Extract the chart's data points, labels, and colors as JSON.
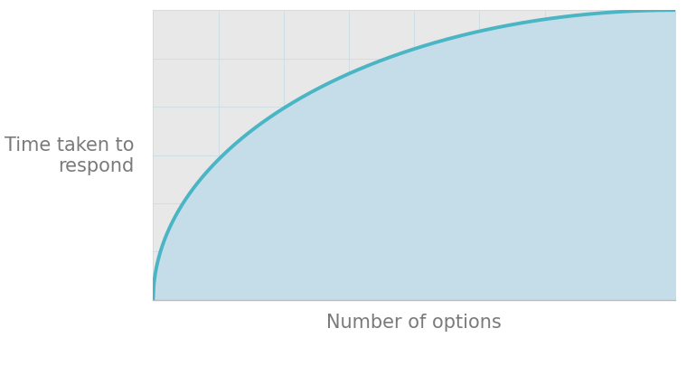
{
  "title": "",
  "xlabel": "Number of options",
  "ylabel": "Time taken to\nrespond",
  "background_color": "#ffffff",
  "plot_bg_color": "#e8e8e8",
  "fill_color": "#c5dde8",
  "line_color": "#4ab5c4",
  "line_width": 2.8,
  "axis_color": "#bbbbbb",
  "label_color": "#7a7a7a",
  "label_fontsize": 15,
  "grid_color": "#c8dde6",
  "grid_linewidth": 0.6,
  "x_range": [
    0,
    1
  ],
  "y_range": [
    0,
    1
  ]
}
